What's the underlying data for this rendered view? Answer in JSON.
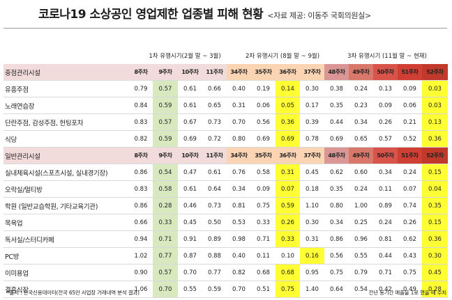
{
  "title": "코로나19 소상공인 영업제한 업종별 피해 현황",
  "source": "<자료 제공: 이동주 국회의원실>",
  "waves": [
    "1차 유행시기(2월 말 ~ 3월)",
    "2차 유행시기 (8월 말 ~ 9월)",
    "3차 유행시기 (11월 말 ~ 현재)"
  ],
  "weeks": [
    "8주차",
    "9주차",
    "10주차",
    "11주차",
    "34주차",
    "35주차",
    "36주차",
    "37주차",
    "48주차",
    "49주차",
    "50주차",
    "51주차",
    "52주차"
  ],
  "groups": [
    {
      "name": "중점관리시설",
      "rows": [
        {
          "label": "유흥주점",
          "values": [
            "0.79",
            "0.57",
            "0.61",
            "0.66",
            "0.40",
            "0.19",
            "0.14",
            "0.30",
            "0.38",
            "0.24",
            "0.13",
            "0.09",
            "0.03"
          ]
        },
        {
          "label": "노래연습장",
          "values": [
            "0.84",
            "0.59",
            "0.61",
            "0.65",
            "0.31",
            "0.06",
            "0.05",
            "0.17",
            "0.35",
            "0.23",
            "0.09",
            "0.06",
            "0.03"
          ]
        },
        {
          "label": "단란주점, 감성주점, 헌팅포차",
          "values": [
            "0.83",
            "0.57",
            "0.67",
            "0.73",
            "0.70",
            "0.56",
            "0.36",
            "0.39",
            "0.44",
            "0.34",
            "0.26",
            "0.21",
            "0.13"
          ]
        },
        {
          "label": "식당",
          "values": [
            "0.82",
            "0.59",
            "0.69",
            "0.72",
            "0.80",
            "0.69",
            "0.69",
            "0.78",
            "0.69",
            "0.65",
            "0.57",
            "0.52",
            "0.36"
          ]
        }
      ]
    },
    {
      "name": "일반관리시설",
      "rows": [
        {
          "label": "실내체육시설(스포츠시설, 실내경기장)",
          "values": [
            "0.86",
            "0.54",
            "0.47",
            "0.61",
            "0.76",
            "0.58",
            "0.31",
            "0.45",
            "0.62",
            "0.60",
            "0.34",
            "0.24",
            "0.15"
          ]
        },
        {
          "label": "오락실/멀티방",
          "values": [
            "0.83",
            "0.58",
            "0.61",
            "0.64",
            "0.34",
            "0.09",
            "0.07",
            "0.18",
            "0.35",
            "0.24",
            "0.11",
            "0.07",
            "0.04"
          ]
        },
        {
          "label": "학원 (일반교습학원, 기타교육기관)",
          "values": [
            "0.86",
            "0.28",
            "0.46",
            "0.73",
            "0.81",
            "0.75",
            "0.59",
            "1.10",
            "0.80",
            "1.00",
            "0.89",
            "0.74",
            "0.35"
          ]
        },
        {
          "label": "목욕업",
          "values": [
            "0.66",
            "0.33",
            "0.45",
            "0.50",
            "0.53",
            "0.33",
            "0.26",
            "0.30",
            "0.34",
            "0.25",
            "0.24",
            "0.26",
            "0.15"
          ]
        },
        {
          "label": "독서실/스터디카페",
          "values": [
            "0.94",
            "0.71",
            "0.91",
            "0.89",
            "0.98",
            "0.71",
            "0.33",
            "0.31",
            "0.86",
            "0.96",
            "0.81",
            "0.62",
            "0.36"
          ]
        },
        {
          "label": "PC방",
          "values": [
            "1.02",
            "0.77",
            "0.87",
            "0.88",
            "0.40",
            "0.11",
            "0.10",
            "0.16",
            "0.56",
            "0.55",
            "0.44",
            "0.43",
            "0.30"
          ]
        },
        {
          "label": "이미용업",
          "values": [
            "0.90",
            "0.57",
            "0.70",
            "0.77",
            "0.82",
            "0.68",
            "0.68",
            "0.95",
            "0.75",
            "0.79",
            "0.71",
            "0.75",
            "0.45"
          ]
        },
        {
          "label": "결혼식장",
          "values": [
            "1.06",
            "0.70",
            "0.55",
            "0.59",
            "0.70",
            "0.51",
            "0.75",
            "1.40",
            "0.64",
            "0.54",
            "0.42",
            "0.49",
            "0.28"
          ]
        }
      ]
    }
  ],
  "highlights": {
    "0": [
      1,
      6,
      12
    ],
    "1": [
      1,
      6,
      12
    ],
    "2": [
      1,
      6,
      12
    ],
    "3": [
      1,
      6,
      12
    ],
    "4": [
      1,
      6,
      12
    ],
    "5": [
      1,
      6,
      12
    ],
    "6": [
      1,
      6,
      12
    ],
    "7": [
      1,
      6,
      12
    ],
    "8": [
      1,
      6,
      12
    ],
    "9": [
      1,
      7,
      12
    ],
    "10": [
      1,
      6,
      12
    ],
    "11": [
      1,
      6,
      12
    ]
  },
  "colors": {
    "label_group_bg": "#f2dcdb",
    "wave1_hdr": "#f2dcdb",
    "wave2_hdr": "#fbd4b4",
    "wave3_hdr": [
      "#d99694",
      "#d9776b",
      "#d8534a",
      "#cf3f33",
      "#c0392b"
    ],
    "green_fill": "#d8e9bf",
    "yellow_fill": "#ffff33"
  },
  "footnote_left": "*출처 : 한국신용데이터(전국 65만 사업장 거래내역 분석 결과)",
  "footnote_right": "전년 동기간 매출을 1로 했을 때 수치"
}
